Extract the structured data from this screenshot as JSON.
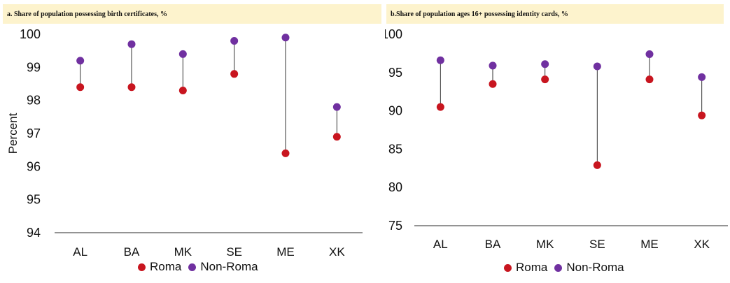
{
  "colors": {
    "roma": "#c8151f",
    "non_roma": "#7030a0",
    "connector": "#333333",
    "title_band": "#fdf3cd"
  },
  "legend": {
    "roma": "Roma",
    "non_roma": "Non-Roma"
  },
  "chart_data": [
    {
      "type": "dumbbell",
      "title": "a. Share of population possessing birth certificates, %",
      "ylabel": "Percent",
      "xlabel": "",
      "ylim": [
        94,
        100
      ],
      "yticks": [
        94,
        95,
        96,
        97,
        98,
        99,
        100
      ],
      "grid": false,
      "legend_position": "bottom",
      "categories": [
        "AL",
        "BA",
        "MK",
        "SE",
        "ME",
        "XK"
      ],
      "series": [
        {
          "name": "Roma",
          "values": [
            98.4,
            98.4,
            98.3,
            98.8,
            96.4,
            96.9
          ]
        },
        {
          "name": "Non-Roma",
          "values": [
            99.2,
            99.7,
            99.4,
            99.8,
            99.9,
            97.8
          ]
        }
      ]
    },
    {
      "type": "dumbbell",
      "title": "b.Share of population ages 16+ possessing identity cards, %",
      "ylabel": "Percent",
      "xlabel": "",
      "ylim": [
        75,
        100
      ],
      "yticks": [
        75,
        80,
        85,
        90,
        95,
        100
      ],
      "grid": false,
      "legend_position": "bottom",
      "categories": [
        "AL",
        "BA",
        "MK",
        "SE",
        "ME",
        "XK"
      ],
      "series": [
        {
          "name": "Roma",
          "values": [
            90.5,
            93.5,
            94.1,
            82.9,
            94.1,
            89.4
          ]
        },
        {
          "name": "Non-Roma",
          "values": [
            96.6,
            95.9,
            96.1,
            95.8,
            97.4,
            94.4
          ]
        }
      ]
    }
  ]
}
